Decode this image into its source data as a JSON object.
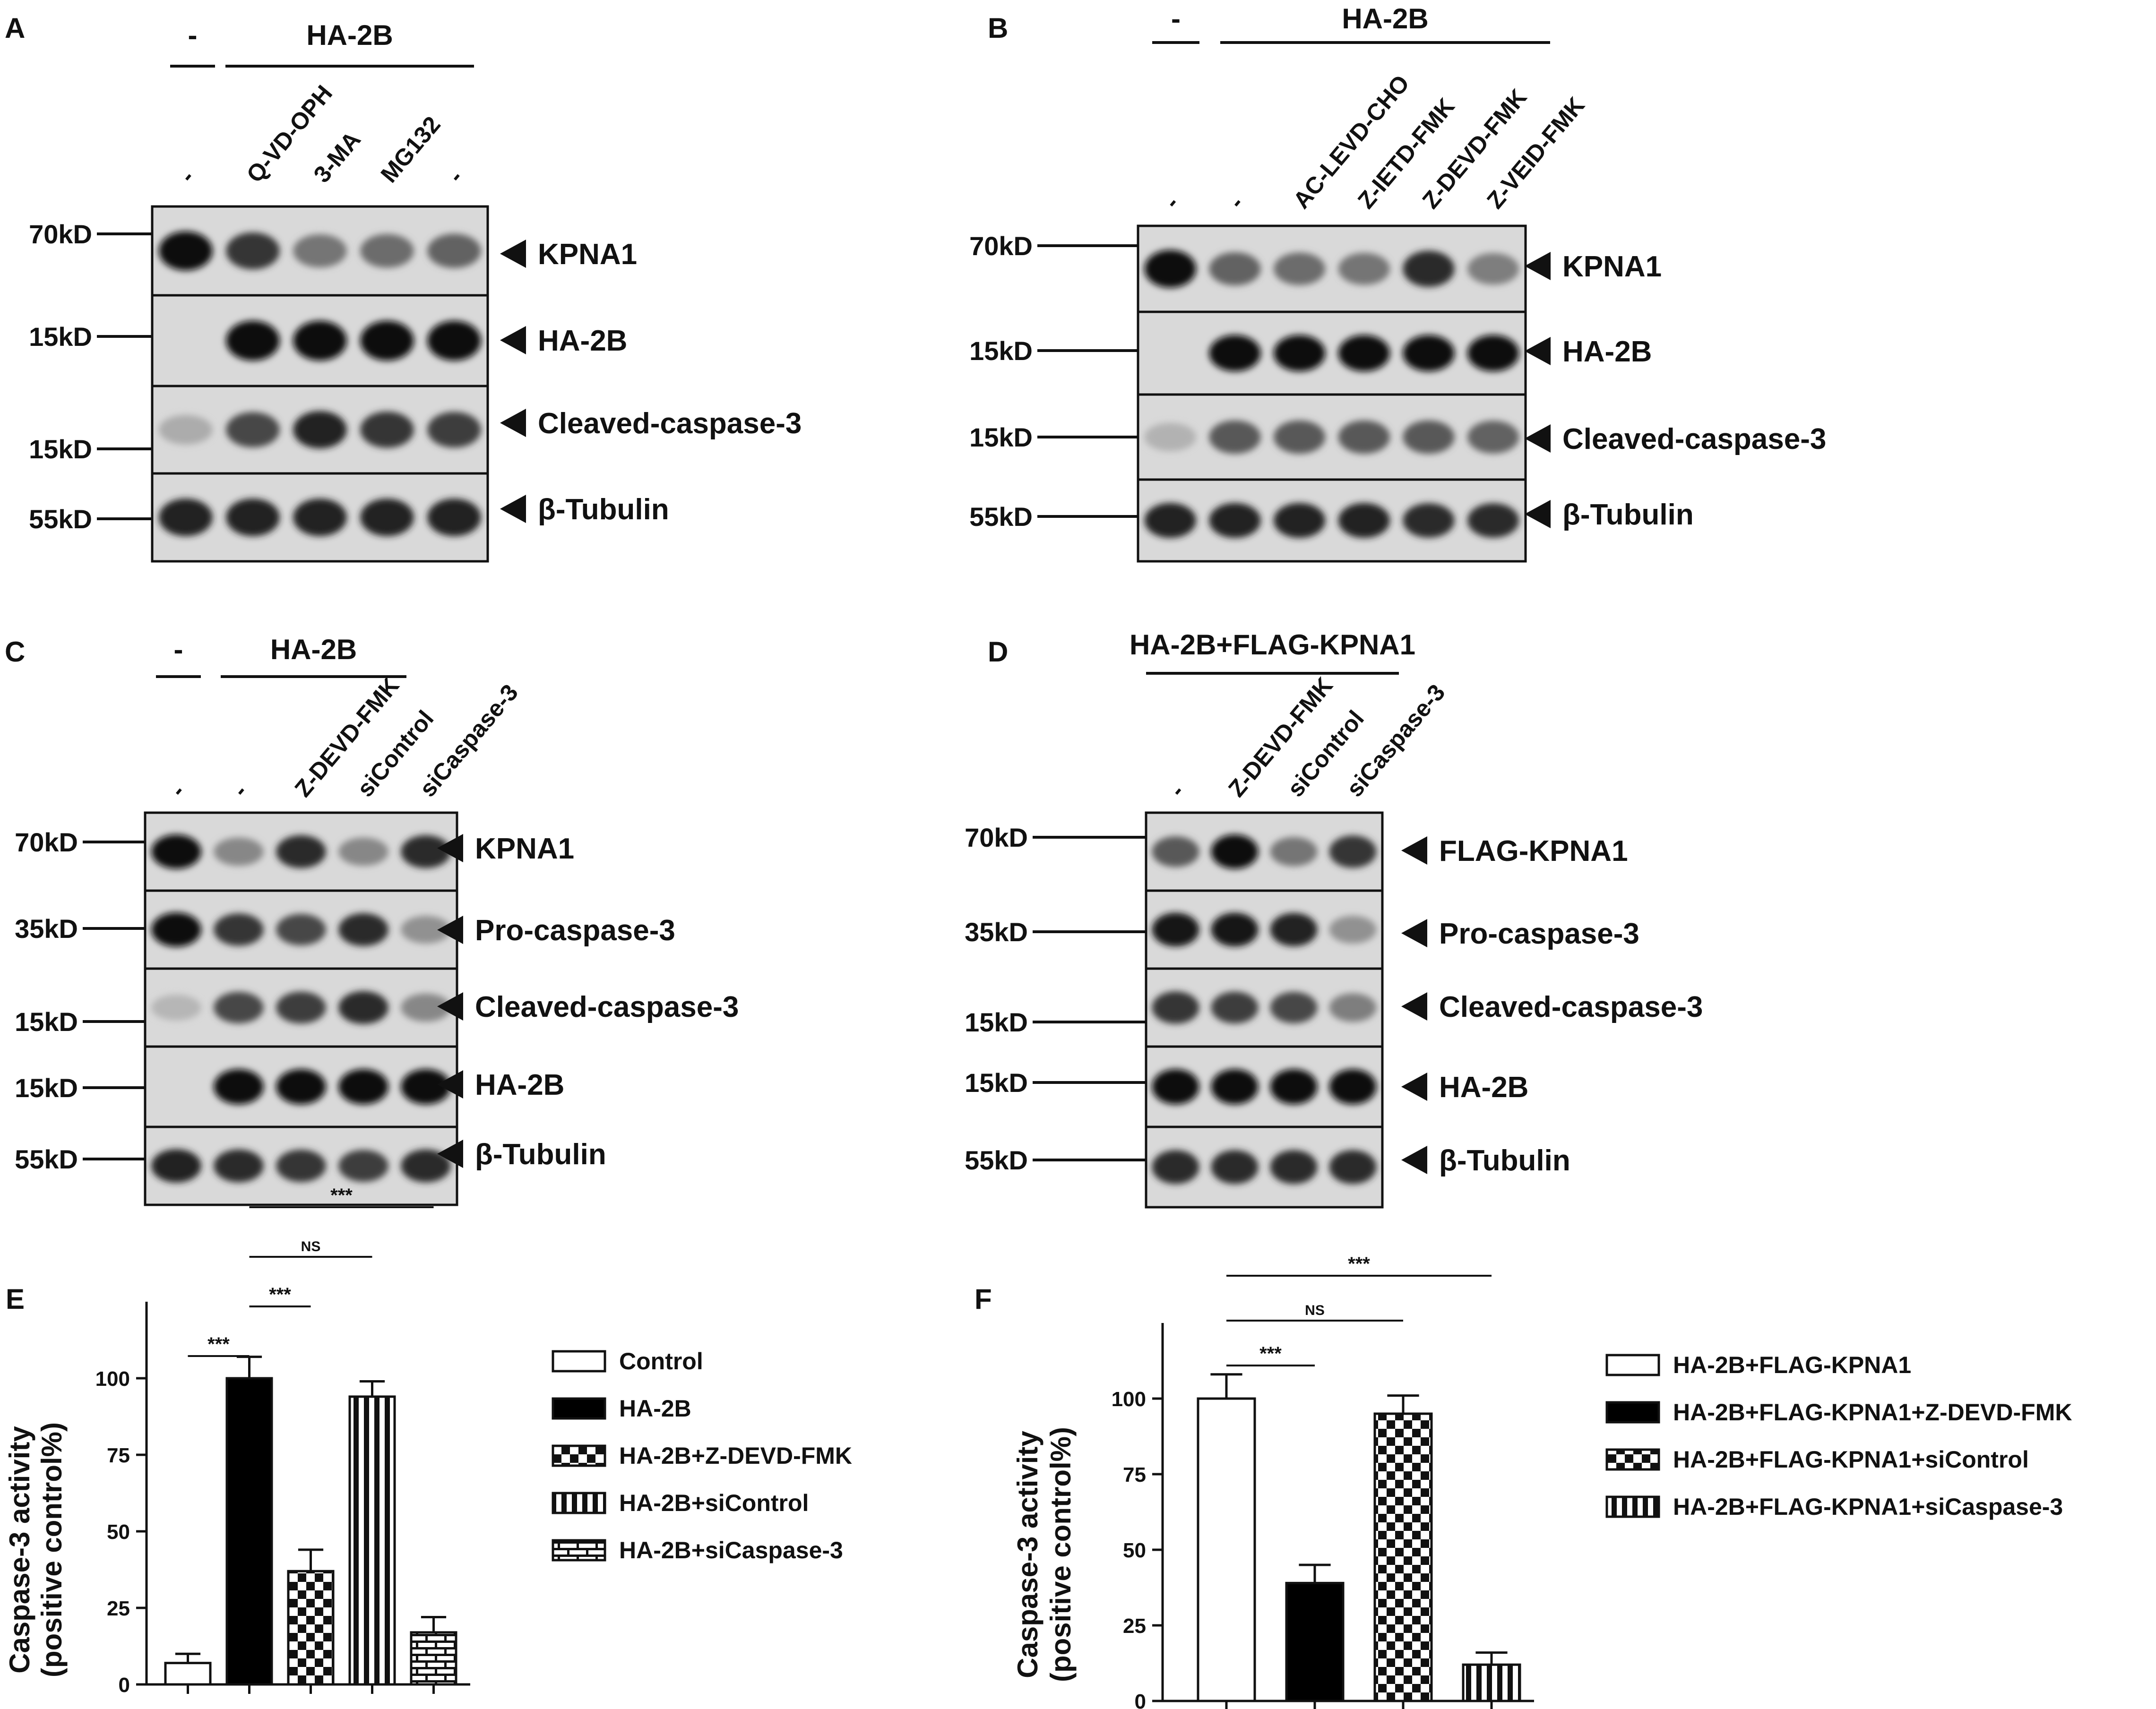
{
  "panels": [
    {
      "letter": "A",
      "group_labels": [
        "-",
        "HA-2B"
      ],
      "lane_labels": [
        "-",
        "Q-VD-OPH",
        "3-MA",
        "MG132",
        "-"
      ],
      "blots": [
        {
          "marker": "70kD",
          "label": "KPNA1",
          "bands": [
            1.0,
            0.8,
            0.45,
            0.5,
            0.55
          ]
        },
        {
          "marker": "15kD",
          "label": "HA-2B",
          "bands": [
            0,
            1.0,
            1.0,
            1.0,
            1.0
          ]
        },
        {
          "marker": "15kD",
          "label": "Cleaved-caspase-3",
          "bands": [
            0.15,
            0.7,
            0.9,
            0.8,
            0.75
          ]
        },
        {
          "marker": "55kD",
          "label": "β-Tubulin",
          "bands": [
            0.9,
            0.9,
            0.9,
            0.9,
            0.9
          ]
        }
      ]
    },
    {
      "letter": "B",
      "group_labels": [
        "-",
        "HA-2B"
      ],
      "lane_labels": [
        "-",
        "-",
        "AC-LEVD-CHO",
        "Z-IETD-FMK",
        "Z-DEVD-FMK",
        "Z-VEID-FMK"
      ],
      "blots": [
        {
          "marker": "70kD",
          "label": "KPNA1",
          "bands": [
            1.0,
            0.55,
            0.5,
            0.45,
            0.85,
            0.4
          ]
        },
        {
          "marker": "15kD",
          "label": "HA-2B",
          "bands": [
            0,
            1.0,
            1.0,
            1.0,
            1.0,
            1.0
          ]
        },
        {
          "marker": "15kD",
          "label": "Cleaved-caspase-3",
          "bands": [
            0.12,
            0.6,
            0.6,
            0.6,
            0.6,
            0.55
          ]
        },
        {
          "marker": "55kD",
          "label": "β-Tubulin",
          "bands": [
            0.9,
            0.9,
            0.9,
            0.9,
            0.85,
            0.85
          ]
        }
      ]
    },
    {
      "letter": "C",
      "group_labels": [
        "-",
        "HA-2B"
      ],
      "lane_labels": [
        "-",
        "-",
        "Z-DEVD-FMK",
        "siControl",
        "siCaspase-3"
      ],
      "blots": [
        {
          "marker": "70kD",
          "label": "KPNA1",
          "bands": [
            1.0,
            0.35,
            0.85,
            0.35,
            0.85
          ]
        },
        {
          "marker": "35kD",
          "label": "Pro-caspase-3",
          "bands": [
            1.0,
            0.8,
            0.7,
            0.85,
            0.3
          ]
        },
        {
          "marker": "15kD",
          "label": "Cleaved-caspase-3",
          "bands": [
            0.1,
            0.7,
            0.75,
            0.85,
            0.35
          ]
        },
        {
          "marker": "15kD",
          "label": "HA-2B",
          "bands": [
            0,
            1.0,
            1.0,
            1.0,
            1.0
          ]
        },
        {
          "marker": "55kD",
          "label": "β-Tubulin",
          "bands": [
            0.9,
            0.85,
            0.8,
            0.75,
            0.85
          ]
        }
      ]
    },
    {
      "letter": "D",
      "group_labels": [
        "HA-2B+FLAG-KPNA1"
      ],
      "lane_labels": [
        "-",
        "Z-DEVD-FMK",
        "siControl",
        "siCaspase-3"
      ],
      "blots": [
        {
          "marker": "70kD",
          "label": "FLAG-KPNA1",
          "bands": [
            0.6,
            1.0,
            0.45,
            0.8
          ]
        },
        {
          "marker": "35kD",
          "label": "Pro-caspase-3",
          "bands": [
            0.95,
            0.95,
            0.9,
            0.3
          ]
        },
        {
          "marker": "15kD",
          "label": "Cleaved-caspase-3",
          "bands": [
            0.8,
            0.75,
            0.7,
            0.4
          ]
        },
        {
          "marker": "15kD",
          "label": "HA-2B",
          "bands": [
            1.0,
            1.0,
            1.0,
            1.0
          ]
        },
        {
          "marker": "55kD",
          "label": "β-Tubulin",
          "bands": [
            0.85,
            0.85,
            0.85,
            0.85
          ]
        }
      ]
    }
  ],
  "chart_data": [
    {
      "panel": "E",
      "type": "bar",
      "ylabel": [
        "Caspase-3 activity",
        "(positive control%)"
      ],
      "ylim": [
        0,
        125
      ],
      "yticks": [
        "0",
        "25",
        "50",
        "75",
        "100"
      ],
      "categories": [
        "Control",
        "HA-2B",
        "HA-2B+Z-DEVD-FMK",
        "HA-2B+siControl",
        "HA-2B+siCaspase-3"
      ],
      "values": [
        7,
        100,
        37,
        94,
        17
      ],
      "errors": [
        3,
        7,
        7,
        5,
        5
      ],
      "patterns": [
        "white",
        "black",
        "checker",
        "vstripe",
        "brick"
      ],
      "significance": [
        {
          "from": 0,
          "to": 1,
          "label": "***"
        },
        {
          "from": 1,
          "to": 2,
          "label": "***"
        },
        {
          "from": 1,
          "to": 3,
          "label": "NS"
        },
        {
          "from": 1,
          "to": 4,
          "label": "***"
        }
      ],
      "legend_position": "right"
    },
    {
      "panel": "F",
      "type": "bar",
      "ylabel": [
        "Caspase-3 activity",
        "(positive control%)"
      ],
      "ylim": [
        0,
        125
      ],
      "yticks": [
        "0",
        "25",
        "50",
        "75",
        "100"
      ],
      "categories": [
        "HA-2B+FLAG-KPNA1",
        "HA-2B+FLAG-KPNA1+Z-DEVD-FMK",
        "HA-2B+FLAG-KPNA1+siControl",
        "HA-2B+FLAG-KPNA1+siCaspase-3"
      ],
      "values": [
        100,
        39,
        95,
        12
      ],
      "errors": [
        8,
        6,
        6,
        4
      ],
      "patterns": [
        "white",
        "black",
        "checker",
        "vstripe"
      ],
      "significance": [
        {
          "from": 0,
          "to": 1,
          "label": "***"
        },
        {
          "from": 0,
          "to": 2,
          "label": "NS"
        },
        {
          "from": 0,
          "to": 3,
          "label": "***"
        }
      ],
      "legend_position": "right"
    }
  ]
}
